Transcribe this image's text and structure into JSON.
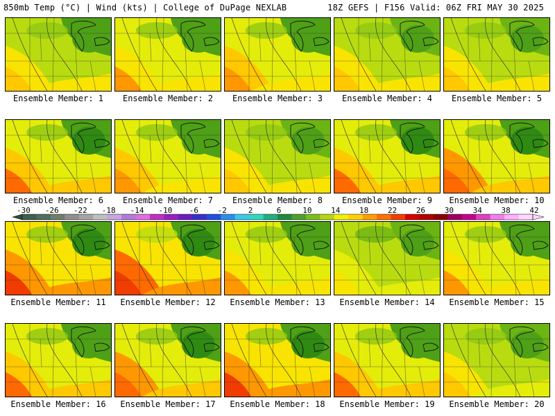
{
  "header": {
    "left": "850mb Temp (°C) | Wind (kts) | College of DuPage NEXLAB",
    "right": "18Z GEFS | F156 Valid: 06Z FRI MAY 30 2025"
  },
  "colors": {
    "scale": [
      "#3f5f4f",
      "#4f6f5f",
      "#6f7f6f",
      "#8f8f8f",
      "#a5a5a5",
      "#bfbfbf",
      "#c9a6e0",
      "#b27ad4",
      "#e070e0",
      "#c030c0",
      "#9a20c0",
      "#6a20c0",
      "#3a30c8",
      "#2050e0",
      "#2a8fe8",
      "#3cc8e8",
      "#30d8c0",
      "#20b080",
      "#1e8a3c",
      "#4da02e",
      "#7abe1c",
      "#b4d614",
      "#f0f00a",
      "#ffd000",
      "#ffa000",
      "#ff7000",
      "#f04000",
      "#d80000",
      "#b00000",
      "#8a0000",
      "#a00060",
      "#c80090",
      "#e040c0",
      "#f080e8",
      "#ffb0ff",
      "#ffd8ff"
    ]
  },
  "colorbar": {
    "ticks": [
      "-30",
      "-26",
      "-22",
      "-18",
      "-14",
      "-10",
      "-6",
      "-2",
      "2",
      "6",
      "10",
      "14",
      "18",
      "22",
      "26",
      "30",
      "34",
      "38",
      "42"
    ]
  },
  "panels": [
    {
      "caption": "Ensemble Member: 1",
      "warm": 0.35
    },
    {
      "caption": "Ensemble Member: 2",
      "warm": 0.4
    },
    {
      "caption": "Ensemble Member: 3",
      "warm": 0.45
    },
    {
      "caption": "Ensemble Member: 4",
      "warm": 0.3
    },
    {
      "caption": "Ensemble Member: 5",
      "warm": 0.3
    },
    {
      "caption": "Ensemble Member: 6",
      "warm": 0.55
    },
    {
      "caption": "Ensemble Member: 7",
      "warm": 0.45
    },
    {
      "caption": "Ensemble Member: 8",
      "warm": 0.3
    },
    {
      "caption": "Ensemble Member: 9",
      "warm": 0.55
    },
    {
      "caption": "Ensemble Member: 10",
      "warm": 0.6
    },
    {
      "caption": "Ensemble Member: 11",
      "warm": 0.7
    },
    {
      "caption": "Ensemble Member: 12",
      "warm": 0.75
    },
    {
      "caption": "Ensemble Member: 13",
      "warm": 0.4
    },
    {
      "caption": "Ensemble Member: 14",
      "warm": 0.2
    },
    {
      "caption": "Ensemble Member: 15",
      "warm": 0.4
    },
    {
      "caption": "Ensemble Member: 16",
      "warm": 0.5
    },
    {
      "caption": "Ensemble Member: 17",
      "warm": 0.6
    },
    {
      "caption": "Ensemble Member: 18",
      "warm": 0.7
    },
    {
      "caption": "Ensemble Member: 19",
      "warm": 0.5
    },
    {
      "caption": "Ensemble Member: 20",
      "warm": 0.25
    }
  ]
}
